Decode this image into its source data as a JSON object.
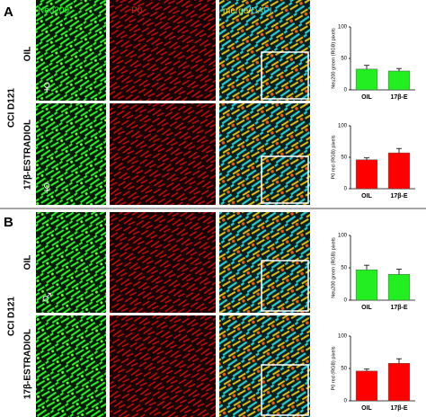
{
  "header": {
    "neu200": "Neu200",
    "p0": "P0",
    "merge": "merge",
    "slash": "/",
    "dapi": "DAPI"
  },
  "panels": [
    {
      "label": "A",
      "group": "CCI D121",
      "rows": [
        "OIL",
        "17β-ESTRADIOL"
      ],
      "symbols": [
        "♀",
        "♀"
      ]
    },
    {
      "label": "B",
      "group": "CCI D121",
      "rows": [
        "OIL",
        "17β-ESTRADIOL"
      ],
      "symbols": [
        "♂"
      ]
    }
  ],
  "chart_data": [
    {
      "type": "bar",
      "ylabel": "Neu200 green (RGB) pixels",
      "categories": [
        "OIL",
        "17β-E"
      ],
      "values": [
        33,
        30
      ],
      "errors": [
        6,
        4
      ],
      "color": "#22ee22",
      "ylim": [
        0,
        100
      ],
      "yticks": [
        0,
        50,
        100
      ]
    },
    {
      "type": "bar",
      "ylabel": "P0 red (RGB) pixels",
      "categories": [
        "OIL",
        "17β-E"
      ],
      "values": [
        46,
        57
      ],
      "errors": [
        3,
        7
      ],
      "color": "#ff0000",
      "ylim": [
        0,
        100
      ],
      "yticks": [
        0,
        50,
        100
      ]
    },
    {
      "type": "bar",
      "ylabel": "Neu200 green (RGB) pixels",
      "categories": [
        "OIL",
        "17β-E"
      ],
      "values": [
        47,
        40
      ],
      "errors": [
        7,
        8
      ],
      "color": "#22ee22",
      "ylim": [
        0,
        100
      ],
      "yticks": [
        0,
        50,
        100
      ]
    },
    {
      "type": "bar",
      "ylabel": "P0 red (RGB) pixels",
      "categories": [
        "OIL",
        "17β-E"
      ],
      "values": [
        46,
        58
      ],
      "errors": [
        3,
        7
      ],
      "color": "#ff0000",
      "ylim": [
        0,
        100
      ],
      "yticks": [
        0,
        50,
        100
      ]
    }
  ]
}
